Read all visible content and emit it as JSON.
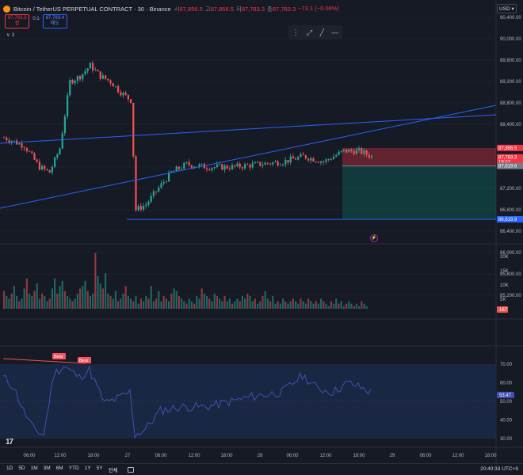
{
  "header": {
    "title": "Bitcoin / TetherUS PERPETUAL CONTRACT · 30 · Binance",
    "ohlc": [
      {
        "k": "시",
        "v": "87,856.5"
      },
      {
        "k": "고",
        "v": "87,856.5"
      },
      {
        "k": "저",
        "v": "87,783.3"
      },
      {
        "k": "종",
        "v": "87,783.3"
      }
    ],
    "change": "−73.1 (−0.08%)"
  },
  "quotes": {
    "sell_price": "87,783.3",
    "sell_label": "팝",
    "spread": "0.1",
    "buy_price": "87,783.4",
    "buy_label": "매도"
  },
  "legend_toggle": "∨ 3",
  "currency": "USD ▾",
  "price_axis": {
    "ticks": [
      {
        "label": "90,400.00",
        "price": 90400
      },
      {
        "label": "90,000.00",
        "price": 90000
      },
      {
        "label": "89,600.00",
        "price": 89600
      },
      {
        "label": "89,200.00",
        "price": 89200
      },
      {
        "label": "88,800.00",
        "price": 88800
      },
      {
        "label": "88,400.00",
        "price": 88400
      },
      {
        "label": "87,600.00",
        "price": 87600
      },
      {
        "label": "87,200.00",
        "price": 87200
      },
      {
        "label": "86,800.00",
        "price": 86800
      },
      {
        "label": "86,400.00",
        "price": 86400
      },
      {
        "label": "86,000.00",
        "price": 86000
      },
      {
        "label": "85,600.00",
        "price": 85600
      },
      {
        "label": "85,200.00",
        "price": 85200
      }
    ],
    "tags": [
      {
        "label": "87,956.5",
        "price": 87956.5,
        "color": "#f23645"
      },
      {
        "label": "87,783.3",
        "price": 87783.3,
        "color": "#f23645",
        "sub": "19:27"
      },
      {
        "label": "87,619.6",
        "price": 87619.6,
        "color": "#787b86"
      },
      {
        "label": "86,623.1",
        "price": 86623.1,
        "color": "#26a69a"
      },
      {
        "label": "86,619.9",
        "price": 86619.9,
        "color": "#2962ff"
      }
    ]
  },
  "volume_axis": {
    "ticks": [
      "20K",
      "15K",
      "10K",
      "5K"
    ],
    "current": "167",
    "values": [
      7,
      5,
      4,
      6,
      9,
      5,
      3,
      4,
      8,
      12,
      6,
      5,
      7,
      10,
      4,
      6,
      5,
      3,
      4,
      8,
      12,
      6,
      9,
      11,
      7,
      5,
      4,
      3,
      4,
      6,
      8,
      9,
      11,
      7,
      5,
      6,
      22,
      13,
      10,
      8,
      14,
      6,
      5,
      4,
      7,
      3,
      4,
      6,
      9,
      5,
      4,
      3,
      5,
      2,
      4,
      3,
      5,
      4,
      9,
      3,
      4,
      7,
      3,
      5,
      4,
      3,
      6,
      8,
      7,
      5,
      4,
      3,
      2,
      4,
      3,
      2,
      5,
      4,
      8,
      6,
      5,
      4,
      3,
      6,
      5,
      4,
      3,
      5,
      3,
      4,
      2,
      3,
      4,
      3,
      5,
      4,
      6,
      5,
      3,
      4,
      2,
      3,
      5,
      7,
      4,
      3,
      5,
      2,
      3,
      2,
      4,
      3,
      2,
      3,
      4,
      3,
      2,
      4,
      3,
      2,
      4,
      3,
      2,
      3,
      2,
      4,
      3,
      2,
      1,
      3,
      2,
      4,
      2,
      3,
      1,
      2,
      3,
      2,
      1,
      2,
      1,
      3,
      2,
      1
    ]
  },
  "rsi_axis": {
    "ticks": [
      "70.00",
      "60.00",
      "50.00",
      "40.00",
      "30.00"
    ],
    "current": "53.47",
    "labels": [
      "Bear",
      "Bear"
    ]
  },
  "time_axis": {
    "ticks": [
      "06:00",
      "12:00",
      "18:00",
      "27",
      "06:00",
      "12:00",
      "18:00",
      "28",
      "06:00",
      "12:00",
      "18:00",
      "29",
      "06:00",
      "12:00",
      "18:00"
    ]
  },
  "ranges": [
    "1D",
    "5D",
    "1M",
    "3M",
    "6M",
    "YTD",
    "1Y",
    "5Y",
    "전체"
  ],
  "clock": "20:40:33 UTC+9",
  "tv_logo": "17",
  "colors": {
    "up": "#26a69a",
    "down": "#ef5350",
    "trendline": "#2962ff",
    "rsi": "#3f51b5",
    "rsi_band": "#1c2a4a"
  }
}
